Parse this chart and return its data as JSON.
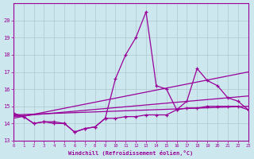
{
  "xlabel": "Windchill (Refroidissement éolien,°C)",
  "background_color": "#cce8ee",
  "line_color": "#990099",
  "grid_color": "#b0c8cc",
  "x_values": [
    0,
    1,
    2,
    3,
    4,
    5,
    6,
    7,
    8,
    9,
    10,
    11,
    12,
    13,
    14,
    15,
    16,
    17,
    18,
    19,
    20,
    21,
    22,
    23
  ],
  "series_main": [
    14.6,
    14.4,
    14.0,
    14.1,
    14.1,
    14.0,
    13.5,
    13.7,
    13.8,
    14.3,
    16.6,
    18.0,
    19.0,
    20.5,
    16.2,
    16.0,
    14.8,
    15.3,
    17.2,
    16.5,
    16.2,
    15.5,
    15.3,
    14.8
  ],
  "series_low": [
    14.5,
    14.4,
    14.0,
    14.1,
    14.0,
    14.0,
    13.5,
    13.7,
    13.8,
    14.3,
    14.3,
    14.4,
    14.4,
    14.5,
    14.5,
    14.5,
    14.8,
    14.9,
    14.9,
    15.0,
    15.0,
    15.0,
    15.0,
    14.8
  ],
  "trend1_start": 14.5,
  "trend1_end": 15.0,
  "trend2_start": 14.4,
  "trend2_end": 15.6,
  "trend3_start": 14.3,
  "trend3_end": 17.0,
  "ylim_min": 13.0,
  "ylim_max": 21.0,
  "xlim_min": 0,
  "xlim_max": 23,
  "yticks": [
    13,
    14,
    15,
    16,
    17,
    18,
    19,
    20
  ],
  "xticks": [
    0,
    1,
    2,
    3,
    4,
    5,
    6,
    7,
    8,
    9,
    10,
    11,
    12,
    13,
    14,
    15,
    16,
    17,
    18,
    19,
    20,
    21,
    22,
    23
  ]
}
